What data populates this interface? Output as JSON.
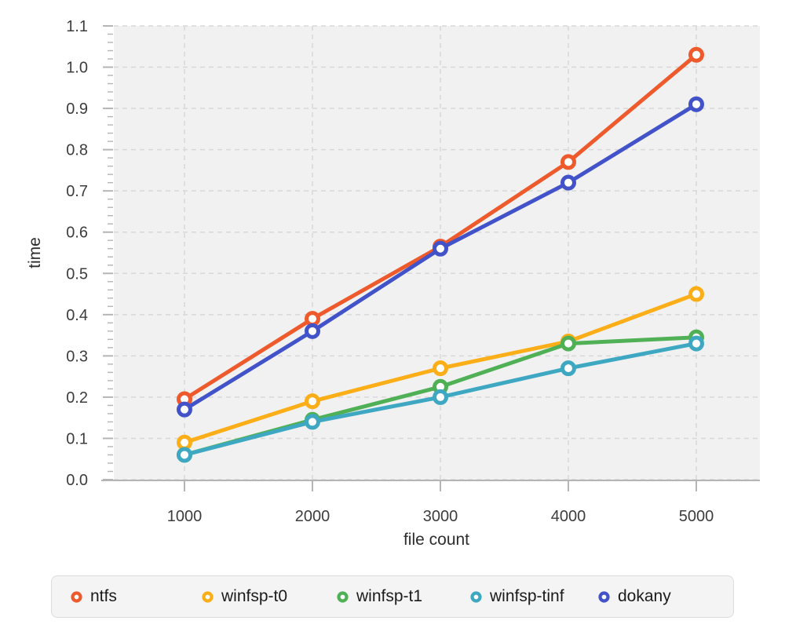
{
  "chart_data": {
    "type": "line",
    "title": "",
    "xlabel": "file count",
    "ylabel": "time",
    "x": [
      1000,
      2000,
      3000,
      4000,
      5000
    ],
    "series": [
      {
        "name": "ntfs",
        "color": "#ee5a2c",
        "values": [
          0.195,
          0.39,
          0.565,
          0.77,
          1.03
        ]
      },
      {
        "name": "winfsp-t0",
        "color": "#fbae17",
        "values": [
          0.09,
          0.19,
          0.27,
          0.335,
          0.45
        ]
      },
      {
        "name": "winfsp-t1",
        "color": "#50b055",
        "values": [
          0.06,
          0.145,
          0.225,
          0.33,
          0.345
        ]
      },
      {
        "name": "winfsp-tinf",
        "color": "#3ea8c3",
        "values": [
          0.06,
          0.14,
          0.2,
          0.27,
          0.33
        ]
      },
      {
        "name": "dokany",
        "color": "#4253c9",
        "values": [
          0.17,
          0.36,
          0.56,
          0.72,
          0.91
        ]
      }
    ],
    "xticks": [
      1000,
      2000,
      3000,
      4000,
      5000
    ],
    "xtick_labels": [
      "1000",
      "2000",
      "3000",
      "4000",
      "5000"
    ],
    "yticks": [
      0.0,
      0.1,
      0.2,
      0.3,
      0.4,
      0.5,
      0.6,
      0.7,
      0.8,
      0.9,
      1.0,
      1.1
    ],
    "ytick_labels": [
      "0.0",
      "0.1",
      "0.2",
      "0.3",
      "0.4",
      "0.5",
      "0.6",
      "0.7",
      "0.8",
      "0.9",
      "1.0",
      "1.1"
    ],
    "ylim": [
      0,
      1.1
    ],
    "y_minor_tick_step": 0.02,
    "grid": "dashed",
    "marker": "open-circle",
    "legend_position": "bottom",
    "style": {
      "plot_bg": "#f1f1f1",
      "grid_color": "#d8d8d8",
      "axis_color": "#b5b5b5",
      "tick_text_color": "#3d3d3d",
      "axis_title_color": "#2e2e2e",
      "legend_bg": "#f4f4f4",
      "legend_border": "#dcdcdc",
      "legend_text_color": "#1b1b1b"
    }
  }
}
